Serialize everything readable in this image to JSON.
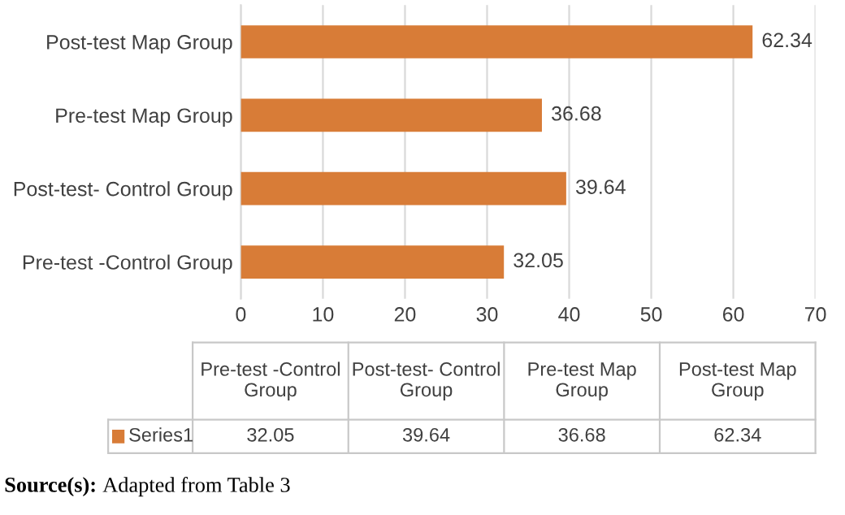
{
  "chart_data": [
    {
      "type": "bar",
      "orientation": "horizontal",
      "categories": [
        "Post-test Map Group",
        "Pre-test Map Group",
        "Post-test- Control Group",
        "Pre-test -Control Group"
      ],
      "series": [
        {
          "color": "#d87c37",
          "values": [
            62.34,
            36.68,
            39.64,
            32.05
          ]
        }
      ],
      "xlim": [
        0,
        70
      ],
      "xticks": [
        0,
        10,
        20,
        30,
        40,
        50,
        60,
        70
      ],
      "grid": "x",
      "data_labels": true,
      "annotations": [
        "Source(s): Adapted from Table 3"
      ]
    },
    {
      "type": "other",
      "categories": [
        "Pre-test -Control Group",
        "Post-test- Control Group",
        "Pre-test Map Group",
        "Post-test Map Group"
      ],
      "series": [
        {
          "name": "Series1",
          "color": "#d87c37",
          "values": [
            32.05,
            39.64,
            36.68,
            62.34
          ]
        }
      ],
      "data_labels": true
    }
  ]
}
